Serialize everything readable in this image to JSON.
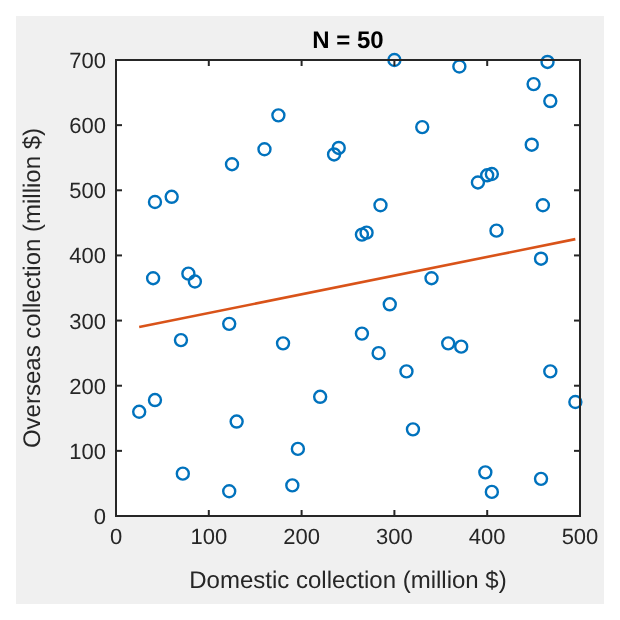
{
  "chart_data": {
    "type": "scatter",
    "title": "N = 50",
    "xlabel": "Domestic collection (million $)",
    "ylabel": "Overseas collection (million $)",
    "xlim": [
      0,
      500
    ],
    "ylim": [
      0,
      700
    ],
    "xticks": [
      0,
      100,
      200,
      300,
      400,
      500
    ],
    "yticks": [
      0,
      100,
      200,
      300,
      400,
      500,
      600,
      700
    ],
    "grid": false,
    "series": [
      {
        "type": "scatter",
        "color": "#0072bd",
        "marker": "circle",
        "x": [
          42,
          60,
          40,
          78,
          85,
          125,
          160,
          175,
          235,
          240,
          265,
          270,
          285,
          300,
          330,
          340,
          370,
          390,
          400,
          405,
          410,
          450,
          448,
          460,
          458,
          465,
          468,
          295,
          25,
          42,
          70,
          72,
          122,
          130,
          122,
          180,
          190,
          196,
          220,
          265,
          283,
          313,
          320,
          358,
          372,
          398,
          405,
          458,
          468,
          495
        ],
        "values": [
          482,
          490,
          365,
          372,
          360,
          540,
          563,
          615,
          555,
          565,
          432,
          435,
          477,
          700,
          597,
          365,
          690,
          512,
          523,
          525,
          438,
          663,
          570,
          477,
          395,
          697,
          637,
          325,
          160,
          178,
          270,
          65,
          295,
          145,
          38,
          265,
          47,
          103,
          183,
          280,
          250,
          222,
          133,
          265,
          260,
          67,
          37,
          57,
          222,
          175
        ]
      },
      {
        "type": "line",
        "color": "#d95319",
        "marker": "none",
        "x": [
          25,
          495
        ],
        "values": [
          290,
          425
        ]
      }
    ]
  }
}
